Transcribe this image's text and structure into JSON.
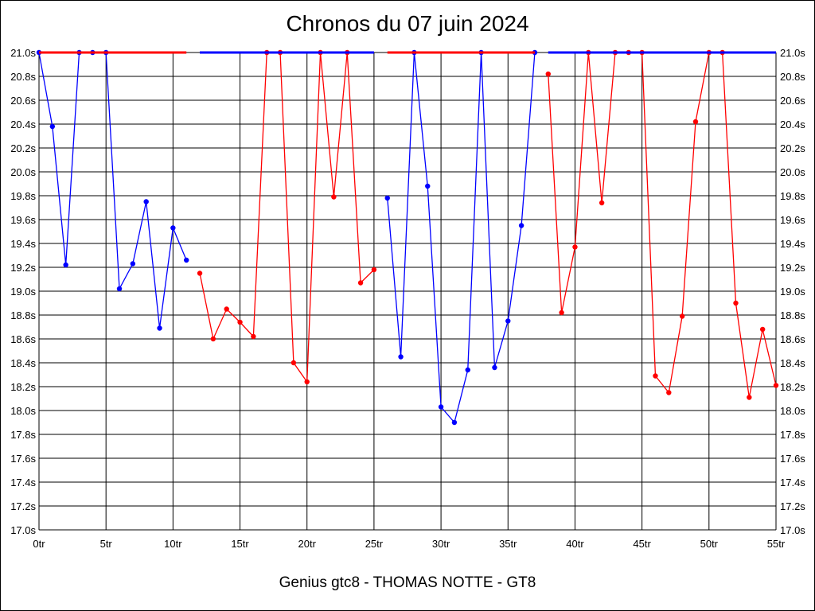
{
  "chart_data": {
    "type": "line",
    "title": "Chronos du 07 juin 2024",
    "footer": "Genius gtc8 - THOMAS NOTTE - GT8",
    "xlim": [
      0,
      55
    ],
    "ylim": [
      17.0,
      21.0
    ],
    "x_ticks": [
      0,
      5,
      10,
      15,
      20,
      25,
      30,
      35,
      40,
      45,
      50,
      55
    ],
    "x_tick_labels": [
      "0tr",
      "5tr",
      "10tr",
      "15tr",
      "20tr",
      "25tr",
      "30tr",
      "35tr",
      "40tr",
      "45tr",
      "50tr",
      "55tr"
    ],
    "y_ticks": [
      17.0,
      17.2,
      17.4,
      17.6,
      17.8,
      18.0,
      18.2,
      18.4,
      18.6,
      18.8,
      19.0,
      19.2,
      19.4,
      19.6,
      19.8,
      20.0,
      20.2,
      20.4,
      20.6,
      20.8,
      21.0
    ],
    "y_tick_labels": [
      "17.0s",
      "17.2s",
      "17.4s",
      "17.6s",
      "17.8s",
      "18.0s",
      "18.2s",
      "18.4s",
      "18.6s",
      "18.8s",
      "19.0s",
      "19.2s",
      "19.4s",
      "19.6s",
      "19.8s",
      "20.0s",
      "20.2s",
      "20.4s",
      "20.6s",
      "20.8s",
      "21.0s"
    ],
    "grid": true,
    "series": [
      {
        "color": "#0000ff",
        "x": [
          0,
          1,
          2,
          3,
          4,
          5,
          6,
          7,
          8,
          9,
          10,
          11
        ],
        "y": [
          21.0,
          20.38,
          19.22,
          21.0,
          21.0,
          21.0,
          19.02,
          19.23,
          19.75,
          18.69,
          19.53,
          19.26
        ]
      },
      {
        "color": "#ff0000",
        "x": [
          12,
          13,
          14,
          15,
          16,
          17,
          18,
          19,
          20,
          21,
          22,
          23,
          24,
          25
        ],
        "y": [
          19.15,
          18.6,
          18.85,
          18.74,
          18.62,
          21.0,
          21.0,
          18.4,
          18.24,
          21.0,
          19.79,
          21.0,
          19.07,
          19.18
        ]
      },
      {
        "color": "#0000ff",
        "x": [
          26,
          27,
          28,
          29,
          30,
          31,
          32,
          33,
          34,
          35,
          36,
          37
        ],
        "y": [
          19.78,
          18.45,
          21.0,
          19.88,
          18.03,
          17.9,
          18.34,
          21.0,
          18.36,
          18.75,
          19.55,
          21.0
        ]
      },
      {
        "color": "#ff0000",
        "x": [
          38,
          39,
          40,
          41,
          42,
          43,
          44,
          45,
          46,
          47,
          48,
          49,
          50,
          51,
          52,
          53,
          54,
          55
        ],
        "y": [
          20.82,
          18.82,
          19.37,
          21.0,
          19.74,
          21.0,
          21.0,
          21.0,
          18.29,
          18.15,
          18.79,
          20.42,
          21.0,
          21.0,
          18.9,
          18.11,
          18.68,
          18.21
        ]
      }
    ],
    "top_bars": [
      {
        "color": "#ff0000",
        "x": [
          0,
          11
        ]
      },
      {
        "color": "#0000ff",
        "x": [
          12,
          25
        ]
      },
      {
        "color": "#ff0000",
        "x": [
          26,
          37
        ]
      },
      {
        "color": "#0000ff",
        "x": [
          38,
          55
        ]
      }
    ]
  }
}
